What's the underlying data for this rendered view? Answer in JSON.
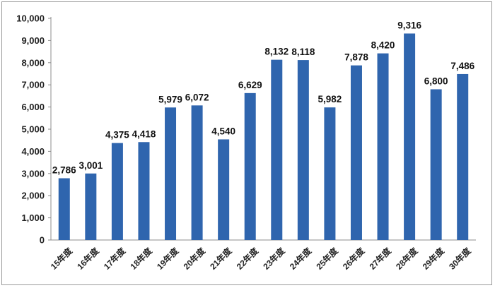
{
  "chart_data": {
    "type": "bar",
    "title": "",
    "xlabel": "",
    "ylabel": "",
    "categories": [
      "15年度",
      "16年度",
      "17年度",
      "18年度",
      "19年度",
      "20年度",
      "21年度",
      "22年度",
      "23年度",
      "24年度",
      "25年度",
      "26年度",
      "27年度",
      "28年度",
      "29年度",
      "30年度"
    ],
    "values": [
      2786,
      3001,
      4375,
      4418,
      5979,
      6072,
      4540,
      6629,
      8132,
      8118,
      5982,
      7878,
      8420,
      9316,
      6800,
      7486
    ],
    "value_labels": [
      "2,786",
      "3,001",
      "4,375",
      "4,418",
      "5,979",
      "6,072",
      "4,540",
      "6,629",
      "8,132",
      "8,118",
      "5,982",
      "7,878",
      "8,420",
      "9,316",
      "6,800",
      "7,486"
    ],
    "ylim": [
      0,
      10000
    ],
    "yticks": [
      0,
      1000,
      2000,
      3000,
      4000,
      5000,
      6000,
      7000,
      8000,
      9000,
      10000
    ],
    "ytick_labels": [
      "0",
      "1,000",
      "2,000",
      "3,000",
      "4,000",
      "5,000",
      "6,000",
      "7,000",
      "8,000",
      "9,000",
      "10,000"
    ],
    "grid": false,
    "bar_color": "#2f65ae"
  }
}
